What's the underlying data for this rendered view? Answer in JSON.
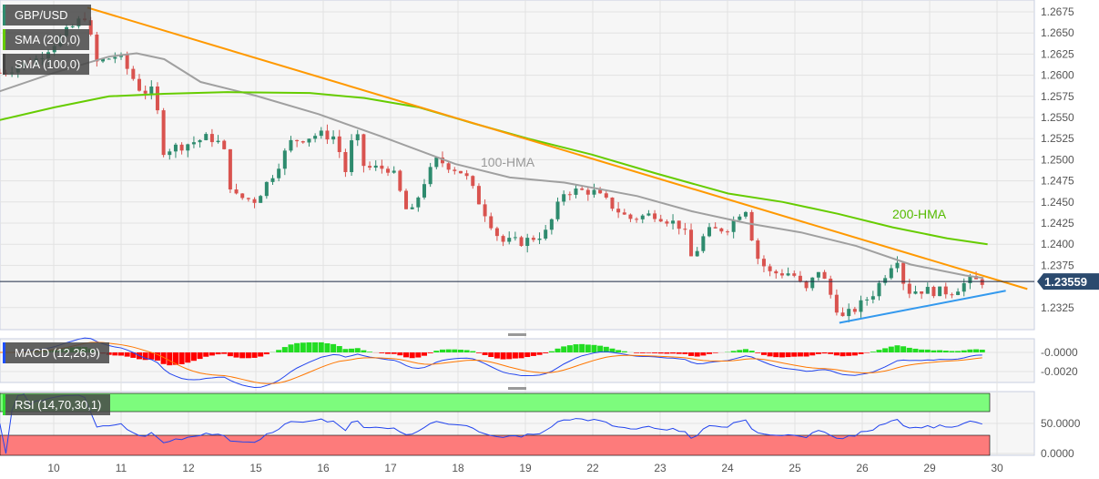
{
  "legend": {
    "symbol": "GBP/USD",
    "sma200": "SMA (200,0)",
    "sma100": "SMA (100,0)",
    "macd": "MACD (12,26,9)",
    "rsi": "RSI (14,70,30,1)"
  },
  "chart_data": {
    "type": "candlestick",
    "symbol": "GBP/USD",
    "x_ticks": [
      "10",
      "11",
      "12",
      "15",
      "16",
      "17",
      "18",
      "19",
      "22",
      "23",
      "24",
      "25",
      "26",
      "29",
      "30"
    ],
    "y_ticks": [
      "1.2675",
      "1.2650",
      "1.2625",
      "1.2600",
      "1.2575",
      "1.2550",
      "1.2525",
      "1.2500",
      "1.2475",
      "1.2450",
      "1.2425",
      "1.2400",
      "1.2375",
      "1.2325"
    ],
    "ylim": [
      1.2305,
      1.269
    ],
    "last_price": "1.23559",
    "price_path": [
      [
        -0.8,
        1.2603
      ],
      [
        -0.26,
        1.2619
      ],
      [
        0.5,
        1.2673
      ],
      [
        0.6,
        1.2614
      ],
      [
        0.96,
        1.2624
      ],
      [
        1.3,
        1.2581
      ],
      [
        1.5,
        1.2581
      ],
      [
        1.61,
        1.2511
      ],
      [
        1.91,
        1.2517
      ],
      [
        2.31,
        1.2527
      ],
      [
        2.51,
        1.2517
      ],
      [
        2.65,
        1.2457
      ],
      [
        2.99,
        1.2452
      ],
      [
        3.26,
        1.2484
      ],
      [
        3.53,
        1.2522
      ],
      [
        3.93,
        1.253
      ],
      [
        4.2,
        1.2527
      ],
      [
        4.31,
        1.2479
      ],
      [
        4.47,
        1.2538
      ],
      [
        4.61,
        1.249
      ],
      [
        5.01,
        1.249
      ],
      [
        5.28,
        1.243
      ],
      [
        5.49,
        1.2473
      ],
      [
        5.69,
        1.25
      ],
      [
        6.09,
        1.2484
      ],
      [
        6.3,
        1.2452
      ],
      [
        6.64,
        1.2403
      ],
      [
        6.97,
        1.2403
      ],
      [
        7.31,
        1.2414
      ],
      [
        7.58,
        1.2463
      ],
      [
        7.99,
        1.2463
      ],
      [
        8.26,
        1.2447
      ],
      [
        8.53,
        1.243
      ],
      [
        8.93,
        1.2436
      ],
      [
        9.34,
        1.242
      ],
      [
        9.47,
        1.2382
      ],
      [
        9.68,
        1.2414
      ],
      [
        10.01,
        1.242
      ],
      [
        10.26,
        1.2446
      ],
      [
        10.42,
        1.2387
      ],
      [
        10.62,
        1.2366
      ],
      [
        10.96,
        1.2366
      ],
      [
        11.16,
        1.2344
      ],
      [
        11.36,
        1.2371
      ],
      [
        11.57,
        1.2333
      ],
      [
        11.7,
        1.2312
      ],
      [
        11.97,
        1.2328
      ],
      [
        12.18,
        1.2344
      ],
      [
        12.51,
        1.2387
      ],
      [
        12.65,
        1.2344
      ],
      [
        12.85,
        1.2346
      ],
      [
        13.12,
        1.2344
      ],
      [
        13.32,
        1.2344
      ],
      [
        13.59,
        1.2357
      ],
      [
        13.86,
        1.2356
      ]
    ],
    "series": [
      {
        "name": "100-HMA",
        "color": "#a0a0a0",
        "points": [
          [
            -0.8,
            1.2581
          ],
          [
            0.01,
            1.2603
          ],
          [
            0.82,
            1.2622
          ],
          [
            1.23,
            1.2626
          ],
          [
            1.64,
            1.2619
          ],
          [
            2.18,
            1.2592
          ],
          [
            2.99,
            1.2576
          ],
          [
            3.93,
            1.2554
          ],
          [
            4.88,
            1.2527
          ],
          [
            5.96,
            1.2495
          ],
          [
            6.77,
            1.2479
          ],
          [
            7.58,
            1.2473
          ],
          [
            8.66,
            1.2457
          ],
          [
            9.47,
            1.2439
          ],
          [
            10.28,
            1.2425
          ],
          [
            11.09,
            1.2414
          ],
          [
            11.91,
            1.2398
          ],
          [
            12.72,
            1.2376
          ],
          [
            13.53,
            1.2363
          ],
          [
            13.8,
            1.236
          ]
        ]
      },
      {
        "name": "200-HMA",
        "color": "#66cc00",
        "points": [
          [
            -0.8,
            1.2547
          ],
          [
            0.01,
            1.2562
          ],
          [
            0.82,
            1.2575
          ],
          [
            1.64,
            1.2578
          ],
          [
            2.58,
            1.258
          ],
          [
            3.8,
            1.2579
          ],
          [
            4.61,
            1.2573
          ],
          [
            5.42,
            1.2562
          ],
          [
            6.23,
            1.2543
          ],
          [
            7.04,
            1.2525
          ],
          [
            7.99,
            1.2506
          ],
          [
            8.93,
            1.2484
          ],
          [
            10.01,
            1.246
          ],
          [
            10.82,
            1.245
          ],
          [
            11.64,
            1.2436
          ],
          [
            12.45,
            1.242
          ],
          [
            13.26,
            1.2407
          ],
          [
            13.86,
            1.24
          ]
        ]
      }
    ],
    "trendlines": [
      {
        "color": "#ff9900",
        "from": [
          0.5,
          1.268
        ],
        "to": [
          14.45,
          1.2347
        ]
      },
      {
        "color": "#3399ee",
        "from": [
          11.66,
          1.2307
        ],
        "to": [
          14.13,
          1.2345
        ]
      }
    ],
    "annotations": [
      "100-HMA",
      "200-HMA"
    ],
    "macd": {
      "params": "12,26,9",
      "y_ticks": [
        "-0.0000",
        "-0.0020"
      ]
    },
    "rsi": {
      "params": "14,70,30,1",
      "y_ticks": [
        "50.0000",
        "0.0000"
      ],
      "overbought": 70,
      "oversold": 30
    }
  }
}
